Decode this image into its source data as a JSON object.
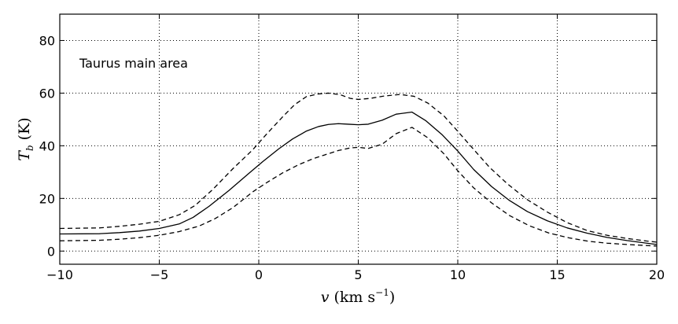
{
  "chart_data": {
    "type": "line",
    "title": "",
    "annotation": "Taurus main area",
    "xlabel_main": "v",
    "xlabel_unit": "(km s",
    "xlabel_exp": "−1",
    "xlabel_close": ")",
    "ylabel_main": "T",
    "ylabel_sub": "b",
    "ylabel_unit": "(K)",
    "xlim": [
      -10,
      20
    ],
    "ylim": [
      -5,
      90
    ],
    "xticks": [
      -10,
      -5,
      0,
      5,
      10,
      15,
      20
    ],
    "yticks": [
      0,
      20,
      40,
      60,
      80
    ],
    "xtick_labels": [
      "−10",
      "−5",
      "0",
      "5",
      "10",
      "15",
      "20"
    ],
    "ytick_labels": [
      "0",
      "20",
      "40",
      "60",
      "80"
    ],
    "grid": true,
    "series": [
      {
        "style": "solid",
        "color": "#000000",
        "points": [
          [
            -10,
            6.5
          ],
          [
            -8,
            6.6
          ],
          [
            -7,
            7
          ],
          [
            -6,
            7.6
          ],
          [
            -5,
            8.6
          ],
          [
            -4,
            10.3
          ],
          [
            -3.3,
            12.8
          ],
          [
            -2.5,
            17
          ],
          [
            -1.5,
            23
          ],
          [
            -0.5,
            29.5
          ],
          [
            0.2,
            34
          ],
          [
            1,
            38.8
          ],
          [
            1.7,
            42.6
          ],
          [
            2.4,
            45.6
          ],
          [
            3,
            47.3
          ],
          [
            3.5,
            48.1
          ],
          [
            4,
            48.4
          ],
          [
            4.5,
            48.2
          ],
          [
            5,
            48
          ],
          [
            5.5,
            48.2
          ],
          [
            6.2,
            49.7
          ],
          [
            6.9,
            52
          ],
          [
            7.7,
            52.8
          ],
          [
            8.4,
            49.5
          ],
          [
            9.2,
            44.3
          ],
          [
            10,
            38
          ],
          [
            10.8,
            31
          ],
          [
            11.7,
            24.5
          ],
          [
            12.6,
            19.2
          ],
          [
            13.5,
            15
          ],
          [
            14.5,
            11.5
          ],
          [
            15.5,
            8.8
          ],
          [
            16.5,
            6.8
          ],
          [
            17.5,
            5.2
          ],
          [
            18.5,
            4
          ],
          [
            19.5,
            3
          ],
          [
            20,
            2.5
          ]
        ]
      },
      {
        "style": "dashed",
        "color": "#000000",
        "points": [
          [
            -10,
            8.6
          ],
          [
            -8,
            8.8
          ],
          [
            -7,
            9.4
          ],
          [
            -6,
            10.2
          ],
          [
            -5,
            11.3
          ],
          [
            -4,
            13.8
          ],
          [
            -3.2,
            17.3
          ],
          [
            -2.3,
            23.5
          ],
          [
            -1.3,
            31.3
          ],
          [
            -0.3,
            38.5
          ],
          [
            0.4,
            44.5
          ],
          [
            1.2,
            51
          ],
          [
            1.8,
            55.6
          ],
          [
            2.4,
            58.7
          ],
          [
            3,
            59.7
          ],
          [
            3.5,
            60
          ],
          [
            4.1,
            59.4
          ],
          [
            4.6,
            58
          ],
          [
            5,
            57.6
          ],
          [
            5.6,
            58
          ],
          [
            6.3,
            58.9
          ],
          [
            7.1,
            59.5
          ],
          [
            7.8,
            58.8
          ],
          [
            8.5,
            56.2
          ],
          [
            9.3,
            51.4
          ],
          [
            10,
            45.5
          ],
          [
            10.8,
            38.6
          ],
          [
            11.6,
            31.8
          ],
          [
            12.5,
            25.5
          ],
          [
            13.5,
            19.5
          ],
          [
            14.5,
            14.8
          ],
          [
            15.5,
            10.8
          ],
          [
            16.5,
            7.8
          ],
          [
            17.5,
            6
          ],
          [
            18.5,
            4.8
          ],
          [
            19.5,
            3.8
          ],
          [
            20,
            3.4
          ]
        ]
      },
      {
        "style": "dashed",
        "color": "#000000",
        "points": [
          [
            -10,
            3.9
          ],
          [
            -8,
            4.1
          ],
          [
            -7,
            4.5
          ],
          [
            -6,
            5.1
          ],
          [
            -5,
            6
          ],
          [
            -4,
            7.4
          ],
          [
            -3,
            9.5
          ],
          [
            -2.2,
            12.3
          ],
          [
            -1.3,
            16.5
          ],
          [
            -0.3,
            22.5
          ],
          [
            0.4,
            26
          ],
          [
            1.2,
            29.7
          ],
          [
            2,
            32.8
          ],
          [
            2.7,
            35
          ],
          [
            3.3,
            36.5
          ],
          [
            4,
            38.2
          ],
          [
            4.6,
            39.2
          ],
          [
            5,
            39.4
          ],
          [
            5.5,
            39
          ],
          [
            6.2,
            40.6
          ],
          [
            6.9,
            44.6
          ],
          [
            7.7,
            47
          ],
          [
            8.5,
            43
          ],
          [
            9.3,
            37
          ],
          [
            10,
            30.5
          ],
          [
            10.8,
            24
          ],
          [
            11.7,
            18.3
          ],
          [
            12.6,
            13.5
          ],
          [
            13.6,
            9.6
          ],
          [
            14.6,
            6.8
          ],
          [
            15.6,
            5
          ],
          [
            16.6,
            3.7
          ],
          [
            17.5,
            3
          ],
          [
            18.5,
            2.5
          ],
          [
            19.5,
            2.1
          ],
          [
            20,
            1.9
          ]
        ]
      }
    ]
  }
}
